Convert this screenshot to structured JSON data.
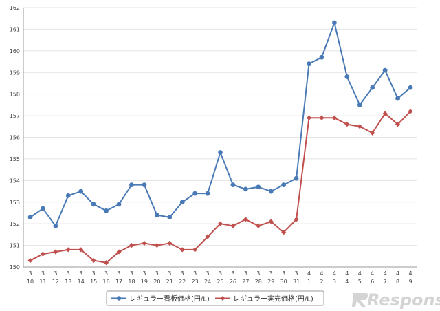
{
  "chart_data": {
    "type": "line",
    "title": "",
    "xlabel": "",
    "ylabel": "",
    "ylim": [
      150,
      162
    ],
    "yticks": [
      150,
      151,
      152,
      153,
      154,
      155,
      156,
      157,
      158,
      159,
      160,
      161,
      162
    ],
    "categories": [
      [
        "3",
        "10"
      ],
      [
        "3",
        "11"
      ],
      [
        "3",
        "12"
      ],
      [
        "3",
        "13"
      ],
      [
        "3",
        "14"
      ],
      [
        "3",
        "15"
      ],
      [
        "3",
        "16"
      ],
      [
        "3",
        "17"
      ],
      [
        "3",
        "18"
      ],
      [
        "3",
        "19"
      ],
      [
        "3",
        "20"
      ],
      [
        "3",
        "21"
      ],
      [
        "3",
        "22"
      ],
      [
        "3",
        "23"
      ],
      [
        "3",
        "24"
      ],
      [
        "3",
        "25"
      ],
      [
        "3",
        "26"
      ],
      [
        "3",
        "27"
      ],
      [
        "3",
        "28"
      ],
      [
        "3",
        "29"
      ],
      [
        "3",
        "30"
      ],
      [
        "3",
        "31"
      ],
      [
        "4",
        "1"
      ],
      [
        "4",
        "2"
      ],
      [
        "4",
        "3"
      ],
      [
        "4",
        "4"
      ],
      [
        "4",
        "5"
      ],
      [
        "4",
        "6"
      ],
      [
        "4",
        "7"
      ],
      [
        "4",
        "8"
      ],
      [
        "4",
        "9"
      ]
    ],
    "grid": "horizontal",
    "legend_position": "bottom",
    "series": [
      {
        "name": "レギュラー看板価格(円/L)",
        "color": "#4a7ab5",
        "marker": "circle",
        "values": [
          152.3,
          152.7,
          151.9,
          153.3,
          153.5,
          152.9,
          152.6,
          152.9,
          153.8,
          153.8,
          152.4,
          152.3,
          153.0,
          153.4,
          153.4,
          155.3,
          153.8,
          153.6,
          153.7,
          153.5,
          153.8,
          154.1,
          159.4,
          159.7,
          161.3,
          158.8,
          157.5,
          158.3,
          159.1,
          157.8,
          158.3
        ]
      },
      {
        "name": "レギュラー実売価格(円/L)",
        "color": "#c0504d",
        "marker": "diamond",
        "values": [
          150.3,
          150.6,
          150.7,
          150.8,
          150.8,
          150.3,
          150.2,
          150.7,
          151.0,
          151.1,
          151.0,
          151.1,
          150.8,
          150.8,
          151.4,
          152.0,
          151.9,
          152.2,
          151.9,
          152.1,
          151.6,
          152.2,
          156.9,
          156.9,
          156.9,
          156.6,
          156.5,
          156.2,
          157.1,
          156.6,
          157.2
        ]
      }
    ]
  },
  "watermark": {
    "text": "Response."
  }
}
